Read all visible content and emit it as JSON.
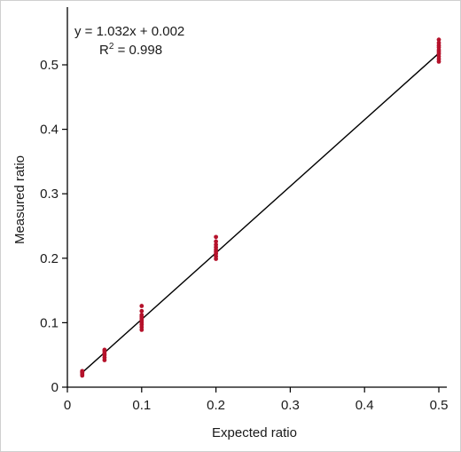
{
  "chart_data": {
    "type": "scatter",
    "title": "",
    "xlabel": "Expected ratio",
    "ylabel": "Measured ratio",
    "xlim": [
      0,
      0.52
    ],
    "ylim": [
      0,
      0.56
    ],
    "xticks": [
      "0",
      "0.1",
      "0.2",
      "0.3",
      "0.4",
      "0.5"
    ],
    "yticks": [
      "0",
      "0.1",
      "0.2",
      "0.3",
      "0.4",
      "0.5"
    ],
    "grid": false,
    "legend": "none",
    "point_color": "#b5122b",
    "line_color": "#000000",
    "annotation": {
      "equation": "y = 1.032x + 0.002",
      "r2_prefix": "R",
      "r2_sup": "2",
      "r2_suffix": " = 0.998"
    },
    "fit_line": {
      "slope": 1.032,
      "intercept": 0.002,
      "x_range": [
        0.02,
        0.5
      ]
    },
    "series": [
      {
        "x": [
          0.02,
          0.02,
          0.02,
          0.02,
          0.02,
          0.02,
          0.05,
          0.05,
          0.05,
          0.05,
          0.05,
          0.05,
          0.1,
          0.1,
          0.1,
          0.1,
          0.1,
          0.1,
          0.1,
          0.1,
          0.1,
          0.1,
          0.2,
          0.2,
          0.2,
          0.2,
          0.2,
          0.2,
          0.2,
          0.2,
          0.2,
          0.5,
          0.5,
          0.5,
          0.5,
          0.5,
          0.5,
          0.5,
          0.5,
          0.5,
          0.5
        ],
        "y": [
          0.018,
          0.02,
          0.022,
          0.023,
          0.024,
          0.025,
          0.042,
          0.046,
          0.05,
          0.053,
          0.056,
          0.058,
          0.089,
          0.093,
          0.097,
          0.1,
          0.103,
          0.106,
          0.109,
          0.112,
          0.118,
          0.126,
          0.199,
          0.203,
          0.207,
          0.21,
          0.213,
          0.217,
          0.221,
          0.226,
          0.233,
          0.505,
          0.509,
          0.513,
          0.517,
          0.52,
          0.523,
          0.527,
          0.53,
          0.534,
          0.539
        ]
      }
    ]
  }
}
